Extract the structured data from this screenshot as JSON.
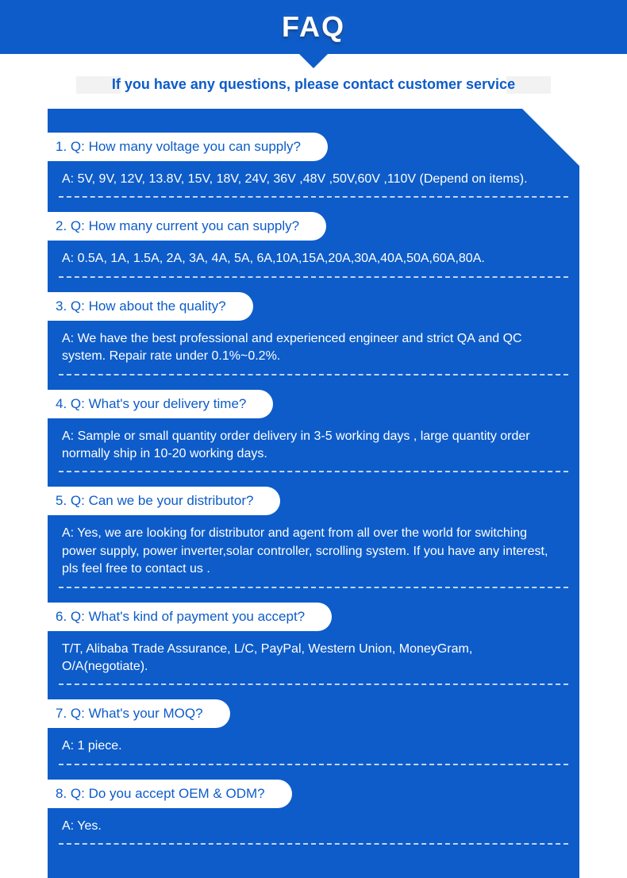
{
  "header": {
    "title": "FAQ"
  },
  "subtitle": "If you have any questions, please contact customer service",
  "colors": {
    "primary": "#0d5cc9",
    "white": "#ffffff",
    "gray": "#f2f2f2"
  },
  "faq": [
    {
      "q": "1. Q: How many voltage you can supply?",
      "a": "A:  5V, 9V, 12V, 13.8V, 15V, 18V, 24V, 36V ,48V ,50V,60V ,110V (Depend on items)."
    },
    {
      "q": "2. Q: How many current you can supply?",
      "a": "A:  0.5A, 1A, 1.5A, 2A, 3A, 4A, 5A, 6A,10A,15A,20A,30A,40A,50A,60A,80A."
    },
    {
      "q": "3. Q: How about the quality?",
      "a": "A:  We have the best professional and experienced engineer and strict QA and QC system. Repair rate under 0.1%~0.2%."
    },
    {
      "q": "4. Q: What's your delivery time?",
      "a": "A:  Sample or small quantity order delivery in 3-5 working days , large quantity order normally ship in 10-20 working days."
    },
    {
      "q": "5. Q: Can we be your distributor?",
      "a": "A:  Yes, we are looking for distributor and agent from all over the world for switching power supply, power inverter,solar controller, scrolling system. If you have any interest, pls feel free to contact us ."
    },
    {
      "q": "6. Q: What's kind of payment you accept?",
      "a": "T/T, Alibaba Trade Assurance, L/C, PayPal, Western Union, MoneyGram, O/A(negotiate)."
    },
    {
      "q": "7. Q: What's your MOQ?",
      "a": "A:  1 piece."
    },
    {
      "q": "8. Q: Do you accept OEM & ODM?",
      "a": "A:  Yes."
    }
  ]
}
